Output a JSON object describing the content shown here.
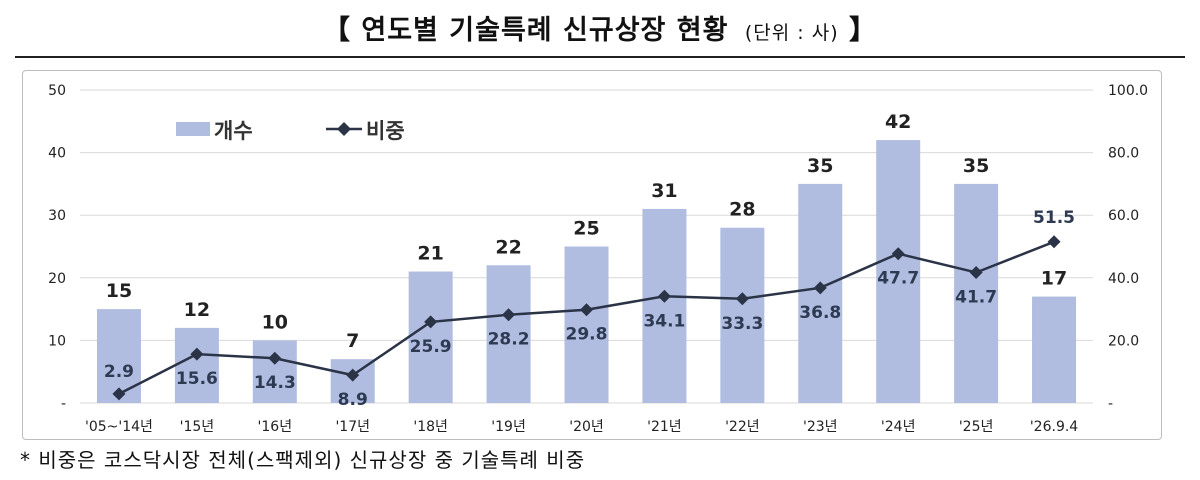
{
  "title": {
    "open_bracket": "【",
    "text": "연도별 기술특례 신규상장 현황",
    "unit": "(단위 : 사)",
    "close_bracket": "】"
  },
  "footnote": "* 비중은 코스닥시장 전체(스팩제외) 신규상장 중 기술특례 비중",
  "colors": {
    "bar": "#b0bde1",
    "line": "#2b3346",
    "text": "#222222"
  },
  "chart_data": {
    "type": "bar",
    "categories": [
      "'05~'14년",
      "'15년",
      "'16년",
      "'17년",
      "'18년",
      "'19년",
      "'20년",
      "'21년",
      "'22년",
      "'23년",
      "'24년",
      "'25년",
      "'26.9.4"
    ],
    "series": [
      {
        "name": "개수",
        "type": "bar",
        "axis": "left",
        "values": [
          15,
          12,
          10,
          7,
          21,
          22,
          25,
          31,
          28,
          35,
          42,
          35,
          17
        ]
      },
      {
        "name": "비중",
        "type": "line",
        "axis": "right",
        "marker": "diamond",
        "values": [
          2.9,
          15.6,
          14.3,
          8.9,
          25.9,
          28.2,
          29.8,
          34.1,
          33.3,
          36.8,
          47.7,
          41.7,
          51.5
        ]
      }
    ],
    "y_left": {
      "ticks": [
        "50",
        "40",
        "30",
        "20",
        "10",
        "-"
      ],
      "ylim": [
        0,
        50
      ]
    },
    "y_right": {
      "ticks": [
        "100.0",
        "80.0",
        "60.0",
        "40.0",
        "20.0",
        "-"
      ],
      "ylim": [
        0,
        100
      ]
    },
    "bar_labels": [
      "15",
      "12",
      "10",
      "7",
      "21",
      "22",
      "25",
      "31",
      "28",
      "35",
      "42",
      "35",
      "17"
    ],
    "line_labels": [
      "2.9",
      "15.6",
      "14.3",
      "8.9",
      "25.9",
      "28.2",
      "29.8",
      "34.1",
      "33.3",
      "36.8",
      "47.7",
      "41.7",
      "51.5"
    ],
    "grid": true,
    "legend_position": "top-left"
  }
}
